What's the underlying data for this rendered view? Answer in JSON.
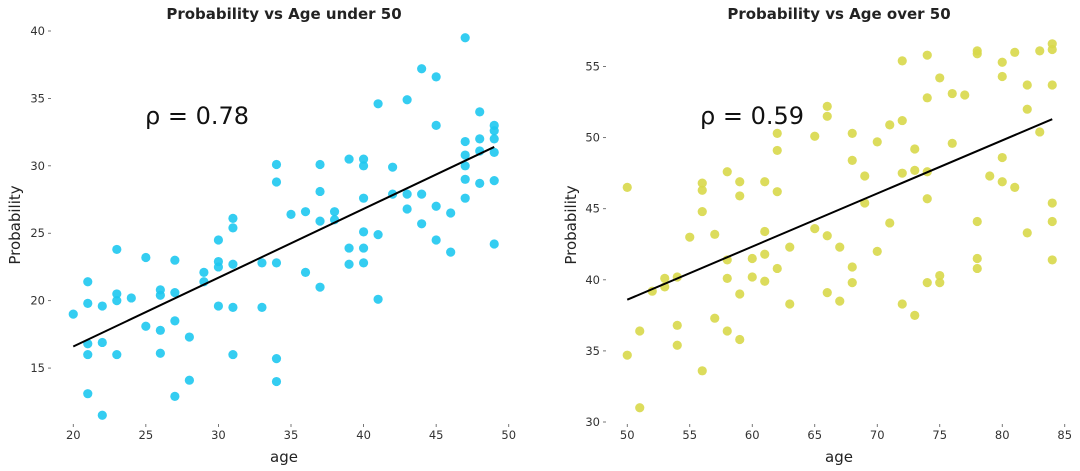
{
  "chart_data": [
    {
      "type": "scatter",
      "title": "Probability vs Age under 50",
      "xlabel": "age",
      "ylabel": "Probability",
      "xlim": [
        19.5,
        50.5
      ],
      "ylim": [
        11,
        40
      ],
      "xticks": [
        20,
        25,
        30,
        35,
        40,
        45,
        50
      ],
      "yticks": [
        15,
        20,
        25,
        30,
        35,
        40
      ],
      "annotation": "ρ = 0.78",
      "grid": false,
      "color": "#1ec8f0",
      "trend_line": {
        "x": [
          20,
          49
        ],
        "y": [
          16.6,
          31.4
        ],
        "color": "#000000"
      },
      "series": [
        {
          "x": [
            20,
            21,
            21,
            21,
            21,
            21,
            22,
            22,
            22,
            23,
            23,
            23,
            23,
            24,
            25,
            25,
            26,
            26,
            26,
            26,
            27,
            27,
            27,
            27,
            28,
            28,
            29,
            29,
            30,
            30,
            30,
            30,
            31,
            31,
            31,
            31,
            31,
            33,
            33,
            34,
            34,
            34,
            34,
            34,
            35,
            36,
            36,
            37,
            37,
            37,
            37,
            38,
            38,
            39,
            39,
            39,
            40,
            40,
            40,
            40,
            40,
            40,
            41,
            41,
            41,
            42,
            42,
            43,
            43,
            43,
            44,
            44,
            44,
            45,
            45,
            45,
            45,
            46,
            46,
            47,
            47,
            47,
            47,
            47,
            47,
            48,
            48,
            48,
            48,
            49,
            49,
            49,
            49,
            49,
            49
          ],
          "y": [
            19.0,
            13.1,
            16.0,
            16.8,
            19.8,
            21.4,
            11.5,
            16.9,
            19.6,
            16.0,
            20.0,
            20.5,
            23.8,
            20.2,
            18.1,
            23.2,
            16.1,
            17.8,
            20.4,
            20.8,
            12.9,
            18.5,
            20.6,
            23.0,
            14.1,
            17.3,
            21.4,
            22.1,
            19.6,
            22.5,
            22.9,
            24.5,
            16.0,
            19.5,
            22.7,
            25.4,
            26.1,
            19.5,
            22.8,
            14.0,
            15.7,
            22.8,
            28.8,
            30.1,
            26.4,
            22.1,
            26.6,
            21.0,
            25.9,
            28.1,
            30.1,
            26.0,
            26.6,
            22.7,
            23.9,
            30.5,
            22.8,
            23.9,
            25.1,
            27.6,
            30.0,
            30.5,
            20.1,
            24.9,
            34.6,
            27.9,
            29.9,
            26.8,
            27.9,
            34.9,
            25.7,
            27.9,
            37.2,
            24.5,
            27.0,
            33.0,
            36.6,
            23.6,
            26.5,
            27.6,
            29.0,
            30.0,
            30.8,
            31.8,
            39.5,
            28.7,
            31.1,
            32.0,
            34.0,
            24.2,
            28.9,
            31.0,
            32.0,
            32.6,
            33.0
          ]
        }
      ]
    },
    {
      "type": "scatter",
      "title": "Probability vs Age over 50",
      "xlabel": "age",
      "ylabel": "Probability",
      "xlim": [
        49.5,
        85.5
      ],
      "ylim": [
        30,
        57.5
      ],
      "xticks": [
        50,
        55,
        60,
        65,
        70,
        75,
        80,
        85
      ],
      "yticks": [
        30,
        35,
        40,
        45,
        50,
        55
      ],
      "annotation": "ρ = 0.59",
      "grid": false,
      "color": "#d8d84a",
      "trend_line": {
        "x": [
          50,
          84
        ],
        "y": [
          38.6,
          51.3
        ],
        "color": "#000000"
      },
      "series": [
        {
          "x": [
            50,
            50,
            51,
            51,
            52,
            53,
            53,
            54,
            54,
            54,
            55,
            56,
            56,
            56,
            56,
            57,
            57,
            58,
            58,
            58,
            58,
            59,
            59,
            59,
            59,
            60,
            60,
            61,
            61,
            61,
            61,
            62,
            62,
            62,
            62,
            63,
            63,
            65,
            65,
            66,
            66,
            66,
            66,
            67,
            67,
            68,
            68,
            68,
            68,
            69,
            69,
            70,
            70,
            71,
            71,
            72,
            72,
            72,
            72,
            73,
            73,
            73,
            74,
            74,
            74,
            74,
            74,
            75,
            75,
            75,
            76,
            76,
            77,
            78,
            78,
            78,
            78,
            78,
            79,
            80,
            80,
            80,
            80,
            81,
            81,
            82,
            82,
            82,
            83,
            83,
            84,
            84,
            84,
            84,
            84,
            84
          ],
          "y": [
            34.7,
            46.5,
            31.0,
            36.4,
            39.2,
            39.5,
            40.1,
            35.4,
            36.8,
            40.2,
            43.0,
            33.6,
            44.8,
            46.3,
            46.8,
            37.3,
            43.2,
            36.4,
            40.1,
            41.4,
            47.6,
            35.8,
            39.0,
            45.9,
            46.9,
            40.2,
            41.5,
            39.9,
            41.8,
            43.4,
            46.9,
            40.8,
            46.2,
            49.1,
            50.3,
            38.3,
            42.3,
            43.6,
            50.1,
            39.1,
            43.1,
            51.5,
            52.2,
            38.5,
            42.3,
            39.8,
            40.9,
            48.4,
            50.3,
            45.4,
            47.3,
            42.0,
            49.7,
            44.0,
            50.9,
            38.3,
            47.5,
            51.2,
            55.4,
            37.5,
            47.7,
            49.2,
            39.8,
            45.7,
            47.6,
            52.8,
            55.8,
            39.8,
            40.3,
            54.2,
            49.6,
            53.1,
            53.0,
            40.8,
            41.5,
            44.1,
            55.9,
            56.1,
            47.3,
            46.9,
            48.6,
            54.3,
            55.3,
            46.5,
            56.0,
            43.3,
            52.0,
            53.7,
            50.4,
            56.1,
            41.4,
            44.1,
            45.4,
            53.7,
            56.2,
            56.6
          ]
        }
      ]
    }
  ]
}
